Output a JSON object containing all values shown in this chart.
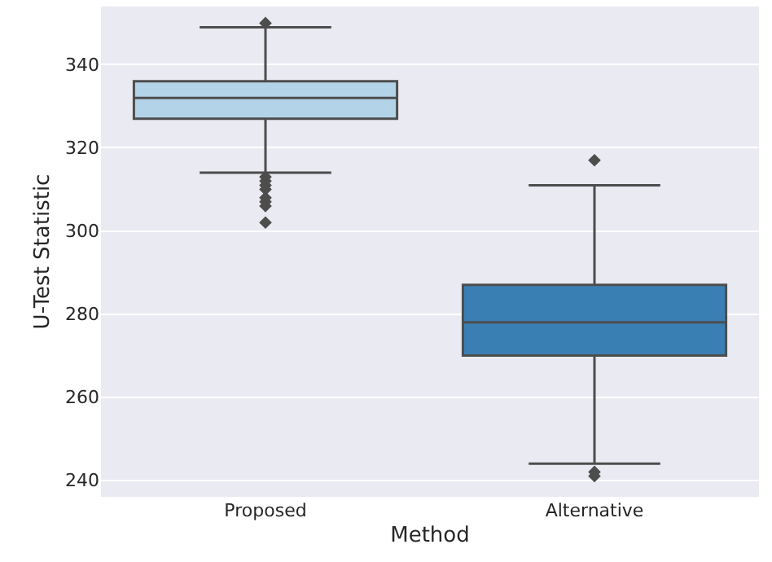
{
  "chart_data": {
    "type": "box",
    "xlabel": "Method",
    "ylabel": "U-Test Statistic",
    "categories": [
      "Proposed",
      "Alternative"
    ],
    "colors": [
      "#b3d3e8",
      "#3a7fb4"
    ],
    "boxes": [
      {
        "low": 314,
        "q1": 327,
        "median": 332,
        "q3": 336,
        "high": 349,
        "outliers": [
          350,
          313,
          312,
          311,
          310,
          308,
          307,
          306,
          302
        ]
      },
      {
        "low": 244,
        "q1": 270,
        "median": 278,
        "q3": 287,
        "high": 311,
        "outliers": [
          317,
          242,
          241
        ]
      }
    ],
    "ylim": [
      236,
      354
    ],
    "yticks": [
      240,
      260,
      280,
      300,
      320,
      340
    ],
    "grid": "y",
    "marker": "diamond"
  }
}
